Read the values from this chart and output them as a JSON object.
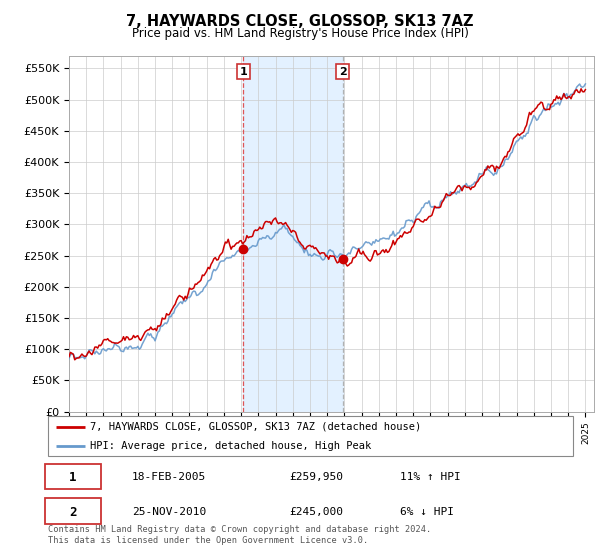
{
  "title": "7, HAYWARDS CLOSE, GLOSSOP, SK13 7AZ",
  "subtitle": "Price paid vs. HM Land Registry's House Price Index (HPI)",
  "ylabel_ticks": [
    "£0",
    "£50K",
    "£100K",
    "£150K",
    "£200K",
    "£250K",
    "£300K",
    "£350K",
    "£400K",
    "£450K",
    "£500K",
    "£550K"
  ],
  "ytick_vals": [
    0,
    50000,
    100000,
    150000,
    200000,
    250000,
    300000,
    350000,
    400000,
    450000,
    500000,
    550000
  ],
  "ylim": [
    0,
    570000
  ],
  "xlim_left": 1995,
  "xlim_right": 2025.5,
  "legend_line1": "7, HAYWARDS CLOSE, GLOSSOP, SK13 7AZ (detached house)",
  "legend_line2": "HPI: Average price, detached house, High Peak",
  "transaction1_label": "1",
  "transaction1_date": "18-FEB-2005",
  "transaction1_price": "£259,950",
  "transaction1_hpi": "11% ↑ HPI",
  "transaction2_label": "2",
  "transaction2_date": "25-NOV-2010",
  "transaction2_price": "£245,000",
  "transaction2_hpi": "6% ↓ HPI",
  "footnote1": "Contains HM Land Registry data © Crown copyright and database right 2024.",
  "footnote2": "This data is licensed under the Open Government Licence v3.0.",
  "sale1_x": 2005.12,
  "sale1_y": 259950,
  "sale2_x": 2010.9,
  "sale2_y": 245000,
  "vline1_x": 2005.12,
  "vline2_x": 2010.9,
  "line_color_red": "#cc0000",
  "line_color_blue": "#6699cc",
  "bg_color": "#ffffff",
  "shade_color": "#ddeeff",
  "grid_color": "#cccccc",
  "vline1_color": "#dd4444",
  "vline2_color": "#aaaaaa"
}
